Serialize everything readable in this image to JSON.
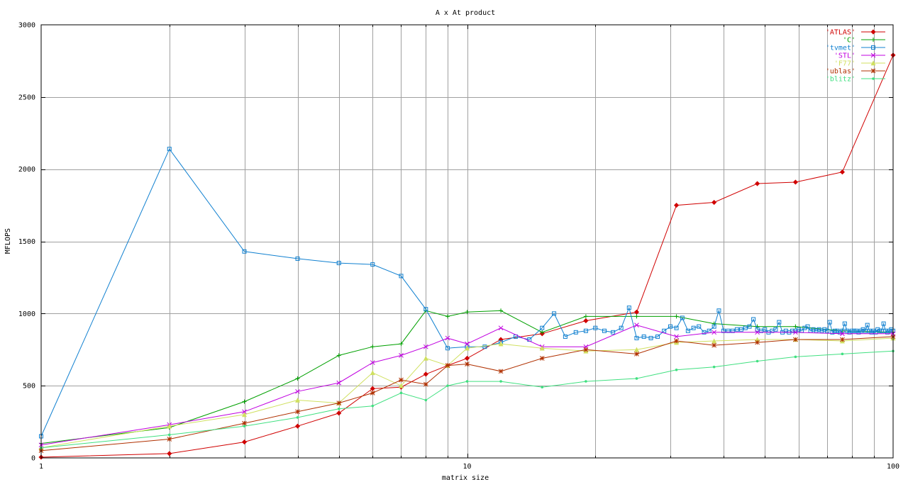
{
  "chart_data": {
    "type": "line",
    "title": "A x At product",
    "xlabel": "matrix size",
    "ylabel": "MFLOPS",
    "xscale": "log",
    "xlim": [
      1,
      100
    ],
    "ylim": [
      0,
      3000
    ],
    "grid": true,
    "legend_position": "top-right",
    "x_tick_labels": [
      "1",
      "10",
      "100"
    ],
    "y_tick_labels": [
      "0",
      "500",
      "1000",
      "1500",
      "2000",
      "2500",
      "3000"
    ],
    "x_tick_values": [
      1,
      10,
      100
    ],
    "y_tick_values": [
      0,
      500,
      1000,
      1500,
      2000,
      2500,
      3000
    ],
    "series": [
      {
        "name": "'ATLAS'",
        "color": "#d00000",
        "marker": "diamond",
        "x": [
          1,
          2,
          3,
          4,
          5,
          6,
          7,
          8,
          9,
          10,
          12,
          15,
          19,
          25,
          31,
          38,
          48,
          59,
          76,
          100
        ],
        "y": [
          5,
          30,
          110,
          220,
          310,
          480,
          490,
          580,
          640,
          690,
          820,
          860,
          950,
          1010,
          1750,
          1770,
          1900,
          1910,
          1980,
          2790
        ]
      },
      {
        "name": "'C'",
        "color": "#00a000",
        "marker": "plus",
        "x": [
          1,
          2,
          3,
          4,
          5,
          6,
          7,
          8,
          9,
          10,
          12,
          15,
          19,
          25,
          31,
          38,
          48,
          59,
          76,
          100
        ],
        "y": [
          100,
          210,
          390,
          550,
          710,
          770,
          790,
          1020,
          980,
          1010,
          1020,
          870,
          980,
          980,
          980,
          930,
          910,
          910,
          880,
          870
        ]
      },
      {
        "name": "'tvmet'",
        "color": "#1080d0",
        "marker": "square",
        "x": [
          1,
          2,
          3,
          4,
          5,
          6,
          7,
          8,
          9,
          10,
          11,
          12,
          13,
          14,
          15,
          16,
          17,
          18,
          19,
          20,
          21,
          22,
          23,
          24,
          25,
          26,
          27,
          28,
          29,
          30,
          31,
          32,
          33,
          34,
          35,
          36,
          37,
          38,
          39,
          40,
          41,
          42,
          43,
          44,
          45,
          46,
          47,
          48,
          49,
          50,
          51,
          52,
          53,
          54,
          55,
          56,
          57,
          58,
          59,
          60,
          61,
          62,
          63,
          64,
          65,
          66,
          67,
          68,
          69,
          70,
          71,
          72,
          73,
          74,
          75,
          76,
          77,
          78,
          79,
          80,
          81,
          82,
          83,
          84,
          85,
          86,
          87,
          88,
          89,
          90,
          91,
          92,
          93,
          94,
          95,
          96,
          97,
          98,
          99,
          100
        ],
        "y": [
          150,
          2140,
          1430,
          1380,
          1350,
          1340,
          1260,
          1030,
          760,
          770,
          770,
          800,
          840,
          820,
          900,
          1000,
          840,
          870,
          880,
          900,
          880,
          870,
          900,
          1040,
          830,
          840,
          830,
          840,
          880,
          910,
          900,
          970,
          880,
          900,
          910,
          870,
          880,
          910,
          1020,
          880,
          880,
          880,
          890,
          890,
          900,
          910,
          960,
          890,
          880,
          890,
          870,
          880,
          890,
          940,
          870,
          880,
          870,
          880,
          880,
          890,
          880,
          900,
          910,
          880,
          890,
          880,
          890,
          880,
          890,
          880,
          940,
          870,
          880,
          880,
          870,
          880,
          930,
          880,
          870,
          880,
          880,
          880,
          870,
          880,
          890,
          880,
          920,
          880,
          870,
          880,
          870,
          890,
          880,
          880,
          930,
          880,
          870,
          880,
          890,
          880
        ]
      },
      {
        "name": "'STL'",
        "color": "#c000e0",
        "marker": "cross",
        "x": [
          1,
          2,
          3,
          4,
          5,
          6,
          7,
          8,
          9,
          10,
          12,
          15,
          19,
          25,
          31,
          38,
          48,
          59,
          76,
          100
        ],
        "y": [
          90,
          230,
          320,
          460,
          520,
          660,
          710,
          770,
          830,
          790,
          900,
          770,
          770,
          920,
          840,
          870,
          870,
          870,
          860,
          860
        ]
      },
      {
        "name": "'F77'",
        "color": "#d0e060",
        "marker": "triangle",
        "x": [
          1,
          2,
          3,
          4,
          5,
          6,
          7,
          8,
          9,
          10,
          12,
          15,
          19,
          25,
          31,
          38,
          48,
          59,
          76,
          100
        ],
        "y": [
          70,
          220,
          300,
          400,
          380,
          590,
          500,
          690,
          640,
          760,
          790,
          760,
          740,
          750,
          800,
          810,
          820,
          820,
          810,
          830
        ]
      },
      {
        "name": "'ublas'",
        "color": "#b03000",
        "marker": "star",
        "x": [
          1,
          2,
          3,
          4,
          5,
          6,
          7,
          8,
          9,
          10,
          12,
          15,
          19,
          25,
          31,
          38,
          48,
          59,
          76,
          100
        ],
        "y": [
          50,
          130,
          240,
          320,
          380,
          450,
          540,
          510,
          640,
          650,
          600,
          690,
          750,
          720,
          810,
          780,
          800,
          820,
          820,
          840
        ]
      },
      {
        "name": "'blitz'",
        "color": "#40e080",
        "marker": "dot",
        "x": [
          1,
          2,
          3,
          4,
          5,
          6,
          7,
          8,
          9,
          10,
          12,
          15,
          19,
          25,
          31,
          38,
          48,
          59,
          76,
          100
        ],
        "y": [
          70,
          160,
          220,
          280,
          340,
          360,
          450,
          400,
          500,
          530,
          530,
          490,
          530,
          550,
          610,
          630,
          670,
          700,
          720,
          740
        ]
      }
    ]
  }
}
